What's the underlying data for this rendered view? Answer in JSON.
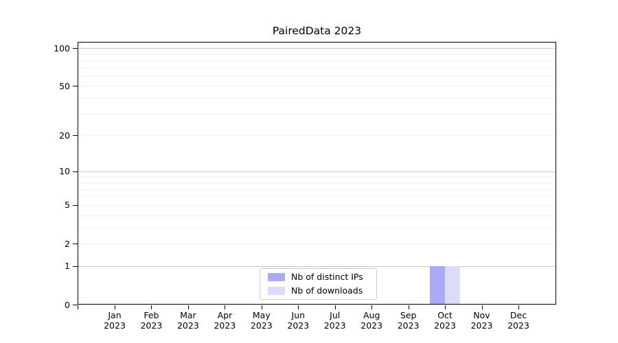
{
  "chart_data": {
    "type": "bar",
    "title": "PairedData 2023",
    "categories": [
      "Jan",
      "Feb",
      "Mar",
      "Apr",
      "May",
      "Jun",
      "Jul",
      "Aug",
      "Sep",
      "Oct",
      "Nov",
      "Dec"
    ],
    "year_label": "2023",
    "series": [
      {
        "name": "Nb of distinct IPs",
        "color": "#aaaaf6",
        "values": [
          0,
          0,
          0,
          0,
          0,
          0,
          0,
          0,
          0,
          1,
          0,
          0
        ]
      },
      {
        "name": "Nb of downloads",
        "color": "#dcdcf8",
        "values": [
          0,
          0,
          0,
          0,
          0,
          0,
          0,
          0,
          0,
          1,
          0,
          0
        ]
      }
    ],
    "yaxis": {
      "scale": "log1p",
      "ticks": [
        100,
        50,
        20,
        10,
        5,
        2,
        1,
        0
      ],
      "major_gridlines": [
        1,
        10,
        100
      ],
      "minor_gridlines": [
        2,
        3,
        4,
        5,
        6,
        7,
        8,
        9,
        20,
        30,
        40,
        50,
        60,
        70,
        80,
        90
      ],
      "top_value": 111.8,
      "ylim": [
        0,
        111.8
      ]
    },
    "xaxis": {
      "edge_tick": true
    },
    "legend": {
      "position": "lower center"
    },
    "grid": true,
    "colors": {
      "spine": "#000000",
      "grid_major": "#c9c9c9",
      "grid_minor": "#f1f1f1"
    }
  }
}
